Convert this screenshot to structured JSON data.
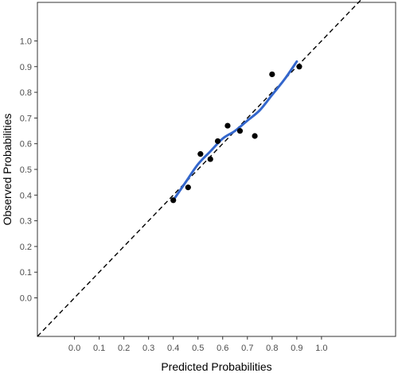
{
  "chart_data": {
    "type": "scatter",
    "title": "",
    "xlabel": "Predicted Probabilities",
    "ylabel": "Observed Probabilities",
    "xlim": [
      -0.15,
      1.3
    ],
    "ylim": [
      -0.15,
      1.15
    ],
    "x_ticks": [
      0.0,
      0.1,
      0.2,
      0.3,
      0.4,
      0.5,
      0.6,
      0.7,
      0.8,
      0.9,
      1.0
    ],
    "y_ticks": [
      0.0,
      0.1,
      0.2,
      0.3,
      0.4,
      0.5,
      0.6,
      0.7,
      0.8,
      0.9,
      1.0
    ],
    "x_tick_labels": [
      "0.0",
      "0.1",
      "0.2",
      "0.3",
      "0.4",
      "0.5",
      "0.6",
      "0.7",
      "0.8",
      "0.9",
      "1.0"
    ],
    "y_tick_labels": [
      "0.0",
      "0.1",
      "0.2",
      "0.3",
      "0.4",
      "0.5",
      "0.6",
      "0.7",
      "0.8",
      "0.9",
      "1.0"
    ],
    "grid": false,
    "legend": "none",
    "points": [
      {
        "x": 0.4,
        "y": 0.38
      },
      {
        "x": 0.46,
        "y": 0.43
      },
      {
        "x": 0.51,
        "y": 0.56
      },
      {
        "x": 0.55,
        "y": 0.54
      },
      {
        "x": 0.58,
        "y": 0.61
      },
      {
        "x": 0.62,
        "y": 0.67
      },
      {
        "x": 0.67,
        "y": 0.65
      },
      {
        "x": 0.73,
        "y": 0.63
      },
      {
        "x": 0.8,
        "y": 0.87
      },
      {
        "x": 0.91,
        "y": 0.9
      }
    ],
    "smooth_curve": [
      {
        "x": 0.4,
        "y": 0.38
      },
      {
        "x": 0.45,
        "y": 0.45
      },
      {
        "x": 0.5,
        "y": 0.52
      },
      {
        "x": 0.55,
        "y": 0.57
      },
      {
        "x": 0.6,
        "y": 0.62
      },
      {
        "x": 0.65,
        "y": 0.65
      },
      {
        "x": 0.7,
        "y": 0.69
      },
      {
        "x": 0.75,
        "y": 0.73
      },
      {
        "x": 0.8,
        "y": 0.79
      },
      {
        "x": 0.85,
        "y": 0.85
      },
      {
        "x": 0.9,
        "y": 0.92
      }
    ],
    "reference_line": {
      "from": [
        -0.15,
        -0.15
      ],
      "to": [
        1.3,
        1.3
      ],
      "style": "dashed"
    },
    "colors": {
      "points": "#000000",
      "curve": "#3366cc",
      "reference": "#000000",
      "axis": "#333333",
      "tick_text": "#4d4d4d"
    }
  }
}
